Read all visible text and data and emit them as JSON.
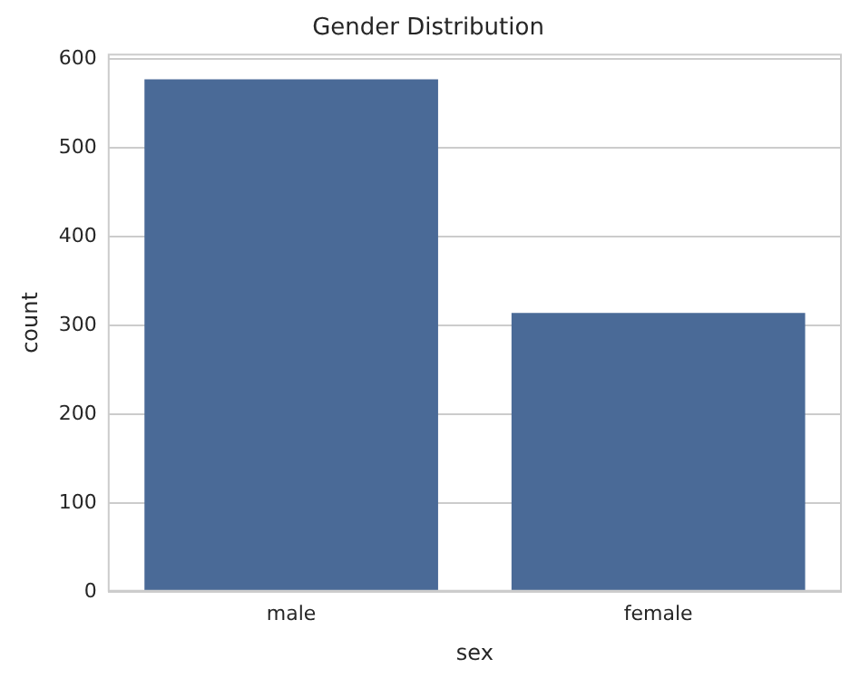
{
  "chart_data": {
    "type": "bar",
    "title": "Gender Distribution",
    "xlabel": "sex",
    "ylabel": "count",
    "categories": [
      "male",
      "female"
    ],
    "values": [
      577,
      314
    ],
    "color": "#4a6a97",
    "ylim": [
      0,
      605.85
    ],
    "yticks": [
      0,
      100,
      200,
      300,
      400,
      500,
      600
    ],
    "grid": "y"
  }
}
